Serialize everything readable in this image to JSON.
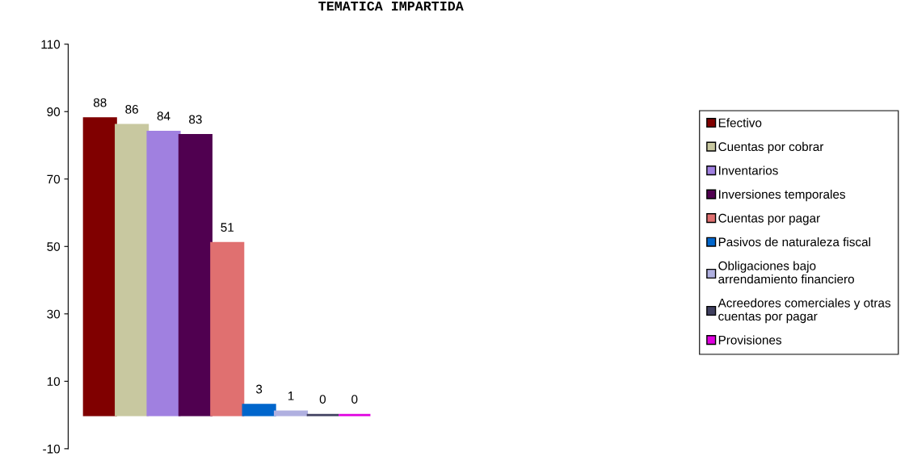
{
  "chart_data": {
    "type": "bar",
    "title": "TEMATICA IMPARTIDA",
    "categories": [
      null
    ],
    "series": [
      {
        "name": "Efectivo",
        "color": "#800000",
        "values": [
          88
        ]
      },
      {
        "name": "Cuentas por cobrar",
        "color": "#c8c8a0",
        "values": [
          86
        ]
      },
      {
        "name": "Inventarios",
        "color": "#a080e0",
        "values": [
          84
        ]
      },
      {
        "name": "Inversiones temporales",
        "color": "#500050",
        "values": [
          83
        ]
      },
      {
        "name": "Cuentas por pagar",
        "color": "#e07070",
        "values": [
          51
        ]
      },
      {
        "name": "Pasivos de naturaleza fiscal",
        "color": "#0066cc",
        "values": [
          3
        ]
      },
      {
        "name": "Obligaciones bajo arrendamiento financiero",
        "color": "#b0b0e0",
        "values": [
          1
        ]
      },
      {
        "name": "Acreedores comerciales y otras cuentas por pagar",
        "color": "#404060",
        "values": [
          0
        ]
      },
      {
        "name": "Provisiones",
        "color": "#e000e0",
        "values": [
          0
        ]
      }
    ],
    "ylim": [
      -10,
      110
    ],
    "yticks": [
      -10,
      10,
      30,
      50,
      70,
      90,
      110
    ],
    "data_labels": true,
    "grid": false,
    "legend": "right"
  }
}
